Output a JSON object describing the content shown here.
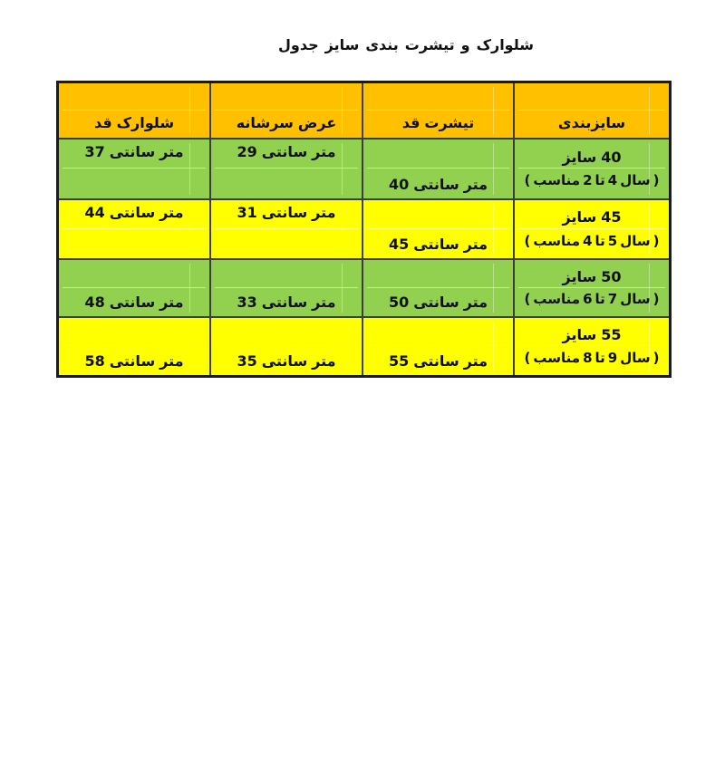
{
  "title": "جدول سایز بندی تیشرت و شلوارک",
  "table": {
    "headers": {
      "shorts": "قد شلوارک",
      "shoulder": "عرض سرشانه",
      "tshirt": "قد تیشرت",
      "sizing": "سایزبندی"
    },
    "rows": [
      {
        "shorts": "37 سانتی متر",
        "shoulder": "29 سانتی متر",
        "tshirt": "40 سانتی متر",
        "size_title": "سایز 40",
        "size_note": "(مناسب 2 تا 4 سال)"
      },
      {
        "shorts": "44 سانتی متر",
        "shoulder": "31 سانتی متر",
        "tshirt": "45 سانتی متر",
        "size_title": "سایز45",
        "size_note": "(مناسب 4 تا 5 سال)"
      },
      {
        "shorts": "48 سانتی متر",
        "shoulder": "33 سانتی متر",
        "tshirt": "50 سانتی متر",
        "size_title": "سایز 50",
        "size_note": "(مناسب 6تا 7 سال)"
      },
      {
        "shorts": "58 سانتی متر",
        "shoulder": "35 سانتی متر",
        "tshirt": "55 سانتی متر",
        "size_title": "سایز 55",
        "size_note": "(مناسب 8 تا 9 سال)"
      }
    ]
  },
  "colors": {
    "header_bg": "#FFC000",
    "row_green": "#92D050",
    "row_yellow": "#FFFF00",
    "inner_border": "#3d3d3d",
    "outer_border": "#1c1c1c",
    "text": "#111111"
  }
}
